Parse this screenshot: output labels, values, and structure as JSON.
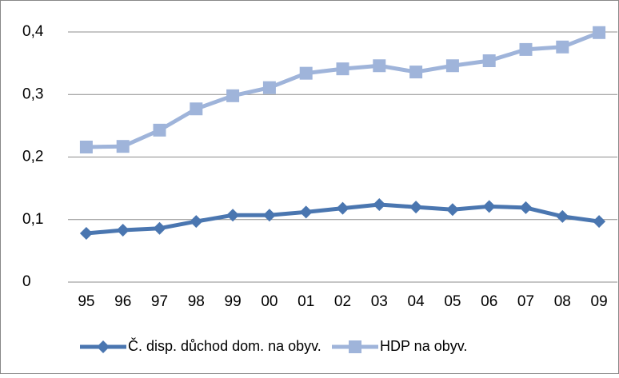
{
  "chart_data": {
    "type": "line",
    "categories": [
      "95",
      "96",
      "97",
      "98",
      "99",
      "00",
      "01",
      "02",
      "03",
      "04",
      "05",
      "06",
      "07",
      "08",
      "09"
    ],
    "series": [
      {
        "name": "Č. disp. důchod dom. na obyv.",
        "color": "#4a76b0",
        "marker": "diamond",
        "values": [
          0.078,
          0.083,
          0.086,
          0.097,
          0.107,
          0.107,
          0.112,
          0.118,
          0.124,
          0.12,
          0.116,
          0.121,
          0.119,
          0.105,
          0.097
        ]
      },
      {
        "name": "HDP na obyv.",
        "color": "#9fb4da",
        "marker": "square",
        "values": [
          0.216,
          0.217,
          0.243,
          0.277,
          0.298,
          0.311,
          0.334,
          0.341,
          0.346,
          0.336,
          0.346,
          0.354,
          0.372,
          0.376,
          0.399
        ]
      }
    ],
    "ylim": [
      0,
      0.4
    ],
    "yticks": [
      0,
      {
        "value": 0.1,
        "label": "0,1"
      },
      {
        "value": 0.2,
        "label": "0,2"
      },
      {
        "value": 0.3,
        "label": "0,3"
      },
      {
        "value": 0.4,
        "label": "0,4"
      }
    ],
    "grid": true,
    "legend": "bottom"
  }
}
